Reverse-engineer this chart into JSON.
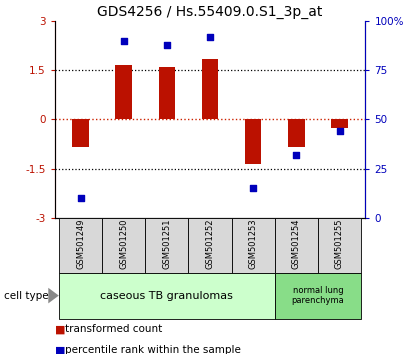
{
  "title": "GDS4256 / Hs.55409.0.S1_3p_at",
  "samples": [
    "GSM501249",
    "GSM501250",
    "GSM501251",
    "GSM501252",
    "GSM501253",
    "GSM501254",
    "GSM501255"
  ],
  "bar_values": [
    -0.85,
    1.65,
    1.6,
    1.85,
    -1.35,
    -0.85,
    -0.25
  ],
  "dot_values": [
    10,
    90,
    88,
    92,
    15,
    32,
    44
  ],
  "ylim_left": [
    -3,
    3
  ],
  "ylim_right": [
    0,
    100
  ],
  "yticks_left": [
    -3,
    -1.5,
    0,
    1.5,
    3
  ],
  "ytick_labels_left": [
    "-3",
    "-1.5",
    "0",
    "1.5",
    "3"
  ],
  "yticks_right": [
    0,
    25,
    50,
    75,
    100
  ],
  "ytick_labels_right": [
    "0",
    "25",
    "50",
    "75",
    "100%"
  ],
  "dotted_lines": [
    -1.5,
    0,
    1.5
  ],
  "bar_color": "#bb1100",
  "dot_color": "#0000bb",
  "zero_line_color": "#cc2200",
  "group1_label": "caseous TB granulomas",
  "group2_label": "normal lung\nparenchyma",
  "group1_indices": [
    0,
    1,
    2,
    3,
    4
  ],
  "group2_indices": [
    5,
    6
  ],
  "cell_type_label": "cell type",
  "legend_bar_label": "transformed count",
  "legend_dot_label": "percentile rank within the sample",
  "group1_color": "#ccffcc",
  "group2_color": "#88dd88",
  "sample_box_color": "#d8d8d8",
  "title_fontsize": 10,
  "tick_fontsize": 7.5,
  "sample_fontsize": 6.0,
  "group_fontsize": 8,
  "legend_fontsize": 7.5
}
